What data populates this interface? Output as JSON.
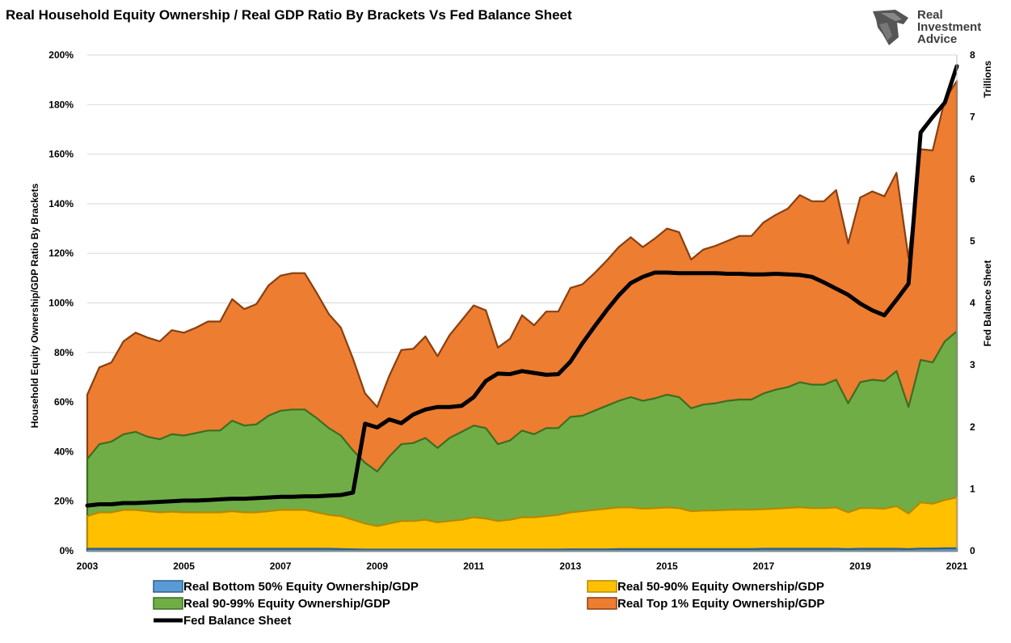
{
  "chart_data": {
    "type": "area",
    "title": "Real Household Equity Ownership / Real GDP Ratio By Brackets Vs Fed Balance Sheet",
    "ylabel": "Household Equity Ownership/GDP Ratio By Brackets",
    "y2label": "Fed Balance Sheet",
    "y2unit": "Trillions",
    "ylim": [
      0,
      200
    ],
    "y2lim": [
      0,
      8
    ],
    "xlim": [
      2003,
      2021
    ],
    "x_ticks": [
      "2003",
      "2005",
      "2007",
      "2009",
      "2011",
      "2013",
      "2015",
      "2017",
      "2019",
      "2021"
    ],
    "y_ticks": [
      "0%",
      "20%",
      "40%",
      "60%",
      "80%",
      "100%",
      "120%",
      "140%",
      "160%",
      "180%",
      "200%"
    ],
    "y2_ticks": [
      "0",
      "1",
      "2",
      "3",
      "4",
      "5",
      "6",
      "7",
      "8"
    ],
    "legend_placement": "bottom",
    "grid": true,
    "x": [
      2003.0,
      2003.25,
      2003.5,
      2003.75,
      2004.0,
      2004.25,
      2004.5,
      2004.75,
      2005.0,
      2005.25,
      2005.5,
      2005.75,
      2006.0,
      2006.25,
      2006.5,
      2006.75,
      2007.0,
      2007.25,
      2007.5,
      2007.75,
      2008.0,
      2008.25,
      2008.5,
      2008.75,
      2009.0,
      2009.25,
      2009.5,
      2009.75,
      2010.0,
      2010.25,
      2010.5,
      2010.75,
      2011.0,
      2011.25,
      2011.5,
      2011.75,
      2012.0,
      2012.25,
      2012.5,
      2012.75,
      2013.0,
      2013.25,
      2013.5,
      2013.75,
      2014.0,
      2014.25,
      2014.5,
      2014.75,
      2015.0,
      2015.25,
      2015.5,
      2015.75,
      2016.0,
      2016.25,
      2016.5,
      2016.75,
      2017.0,
      2017.25,
      2017.5,
      2017.75,
      2018.0,
      2018.25,
      2018.5,
      2018.75,
      2019.0,
      2019.25,
      2019.5,
      2019.75,
      2020.0,
      2020.25,
      2020.5,
      2020.75,
      2021.0
    ],
    "series": [
      {
        "name": "Real Bottom 50% Equity Ownership/GDP",
        "color": "#5b9bd5",
        "values": [
          0.8,
          0.8,
          0.8,
          0.8,
          0.8,
          0.8,
          0.8,
          0.8,
          0.8,
          0.8,
          0.8,
          0.8,
          0.8,
          0.8,
          0.8,
          0.8,
          0.8,
          0.8,
          0.8,
          0.8,
          0.8,
          0.7,
          0.6,
          0.5,
          0.5,
          0.5,
          0.5,
          0.5,
          0.5,
          0.5,
          0.5,
          0.5,
          0.5,
          0.5,
          0.5,
          0.5,
          0.5,
          0.5,
          0.5,
          0.5,
          0.6,
          0.6,
          0.6,
          0.6,
          0.7,
          0.7,
          0.7,
          0.7,
          0.7,
          0.7,
          0.7,
          0.7,
          0.7,
          0.7,
          0.7,
          0.7,
          0.8,
          0.8,
          0.8,
          0.8,
          0.8,
          0.8,
          0.8,
          0.7,
          0.8,
          0.8,
          0.8,
          0.8,
          0.7,
          0.9,
          0.9,
          1.0,
          1.0
        ]
      },
      {
        "name": "Real 50-90% Equity Ownership/GDP",
        "color": "#ffc000",
        "values": [
          14,
          15.5,
          15.5,
          16.5,
          16.5,
          16,
          15.5,
          15.8,
          15.5,
          15.5,
          15.5,
          15.5,
          16,
          15.5,
          15.5,
          16,
          16.5,
          16.5,
          16.5,
          15.5,
          14.5,
          14,
          12.5,
          11,
          10,
          11,
          12,
          12,
          12.5,
          11.5,
          12,
          12.5,
          13.5,
          13,
          12,
          12.5,
          13.5,
          13.5,
          14,
          14.5,
          15.5,
          16,
          16.5,
          17,
          17.5,
          17.5,
          17,
          17.2,
          17.5,
          17.2,
          16,
          16.2,
          16.3,
          16.5,
          16.6,
          16.6,
          16.8,
          17,
          17.3,
          17.6,
          17.2,
          17.2,
          17.5,
          15.5,
          17.2,
          17.2,
          17,
          18,
          15,
          19.5,
          19,
          20.5,
          21.5
        ]
      },
      {
        "name": "Real 90-99% Equity Ownership/GDP",
        "color": "#70ad47",
        "values": [
          37,
          43,
          44,
          47,
          48,
          46,
          45,
          47,
          46.5,
          47.5,
          48.5,
          48.5,
          52.5,
          50.5,
          51,
          54.5,
          56.5,
          57,
          57,
          53.5,
          49.5,
          46.5,
          40.5,
          35.5,
          32,
          38,
          43,
          43.5,
          45.5,
          41.5,
          45.5,
          48,
          50.5,
          49.5,
          43,
          44.5,
          48.5,
          47,
          49.5,
          49.5,
          54,
          54.5,
          56.5,
          58.5,
          60.5,
          62,
          60.5,
          61.5,
          63,
          62,
          57.5,
          59,
          59.5,
          60.5,
          61,
          61,
          63.5,
          65,
          66,
          68,
          67,
          67,
          69,
          59.5,
          68,
          69,
          68.5,
          72.5,
          58,
          77,
          76,
          84.5,
          88.5
        ]
      },
      {
        "name": "Real Top 1% Equity Ownership/GDP",
        "color": "#ed7d31",
        "values": [
          63,
          74,
          76,
          84.5,
          88,
          86,
          84.5,
          89,
          88,
          90,
          92.5,
          92.5,
          101.5,
          97.5,
          99.5,
          107,
          111,
          112,
          112,
          104,
          95.5,
          90,
          77.5,
          63.5,
          58,
          70.5,
          81,
          81.5,
          86.5,
          78.5,
          87,
          93,
          99,
          97,
          82,
          85.5,
          95,
          91,
          96.5,
          96.5,
          106,
          107.5,
          112,
          117,
          122.5,
          126.5,
          122.5,
          126,
          130,
          128.5,
          117.5,
          121.5,
          123,
          125,
          127,
          127,
          132.5,
          135.5,
          138,
          143.5,
          141,
          141,
          145.5,
          124,
          142.5,
          145,
          143,
          152.5,
          118,
          162,
          161.5,
          182,
          189.5
        ]
      }
    ],
    "line_series": {
      "name": "Fed Balance Sheet",
      "axis": "right",
      "color": "#000000",
      "values": [
        0.73,
        0.75,
        0.75,
        0.77,
        0.77,
        0.78,
        0.79,
        0.8,
        0.81,
        0.81,
        0.82,
        0.83,
        0.84,
        0.84,
        0.85,
        0.86,
        0.87,
        0.87,
        0.88,
        0.88,
        0.89,
        0.9,
        0.94,
        2.05,
        1.99,
        2.12,
        2.06,
        2.2,
        2.28,
        2.32,
        2.32,
        2.34,
        2.48,
        2.74,
        2.86,
        2.85,
        2.9,
        2.87,
        2.84,
        2.85,
        3.05,
        3.35,
        3.62,
        3.88,
        4.12,
        4.32,
        4.42,
        4.49,
        4.49,
        4.48,
        4.48,
        4.48,
        4.48,
        4.47,
        4.47,
        4.46,
        4.46,
        4.47,
        4.46,
        4.45,
        4.42,
        4.33,
        4.23,
        4.13,
        3.99,
        3.88,
        3.8,
        4.05,
        4.31,
        6.75,
        7.0,
        7.23,
        7.82
      ]
    }
  },
  "legend": [
    {
      "label": "Real Bottom 50% Equity Ownership/GDP",
      "color": "#5b9bd5",
      "type": "area"
    },
    {
      "label": "Real 50-90% Equity Ownership/GDP",
      "color": "#ffc000",
      "type": "area"
    },
    {
      "label": "Real 90-99% Equity Ownership/GDP",
      "color": "#70ad47",
      "type": "area"
    },
    {
      "label": "Real Top 1% Equity Ownership/GDP",
      "color": "#ed7d31",
      "type": "area"
    },
    {
      "label": "Fed Balance Sheet",
      "color": "#000000",
      "type": "line"
    }
  ],
  "logo": {
    "icon": "eagle-head-icon",
    "line1": "Real",
    "line2": "Investment",
    "line3": "Advice"
  }
}
